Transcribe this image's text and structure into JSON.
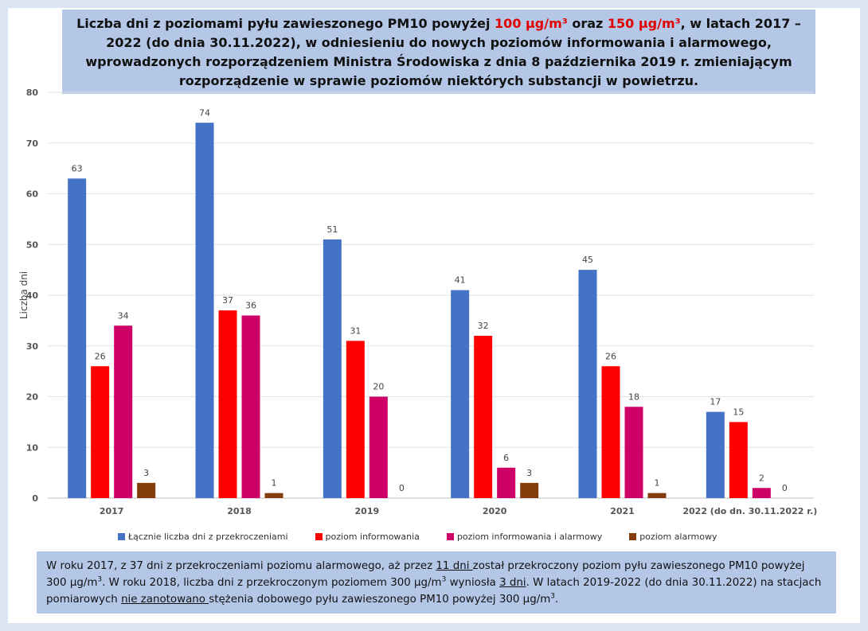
{
  "title": {
    "part1": "Liczba dni z poziomami pyłu zawieszonego PM10 powyżej ",
    "threshold1": "100 µg/m³",
    "part2": " oraz ",
    "threshold2": "150 µg/m³",
    "part3": ", w latach 2017 – 2022 (do dnia 30.11.2022), w odniesieniu do nowych poziomów informowania i alarmowego, wprowadzonych rozporządzeniem Ministra Środowiska z dnia 8 października 2019 r. zmieniającym rozporządzenie w sprawie poziomów niektórych substancji w powietrzu."
  },
  "chart_data": {
    "type": "bar",
    "categories": [
      "2017",
      "2018",
      "2019",
      "2020",
      "2021",
      "2022 (do dn. 30.11.2022 r.)"
    ],
    "series": [
      {
        "name": "Łącznie liczba dni z przekroczeniami",
        "color": "#4472c4",
        "values": [
          63,
          74,
          51,
          41,
          45,
          17
        ]
      },
      {
        "name": "poziom informowania",
        "color": "#ff0000",
        "values": [
          26,
          37,
          31,
          32,
          26,
          15
        ]
      },
      {
        "name": "poziom informowania i alarmowy",
        "color": "#cc0066",
        "values": [
          34,
          36,
          20,
          6,
          18,
          2
        ]
      },
      {
        "name": "poziom alarmowy",
        "color": "#843c0c",
        "values": [
          3,
          1,
          0,
          3,
          1,
          0
        ]
      }
    ],
    "xlabel": "",
    "ylabel": "Liczba dni",
    "ylim": [
      0,
      80
    ],
    "yticks": [
      0,
      10,
      20,
      30,
      40,
      50,
      60,
      70,
      80
    ],
    "grid": true,
    "legend": "bottom"
  },
  "note": {
    "t1": "W roku 2017, z 37 dni z przekroczeniami poziomu alarmowego, aż przez ",
    "u1": "11 dni ",
    "t2": "został przekroczony poziom pyłu zawieszonego PM10 powyżej 300 µg/m",
    "sup": "3",
    "t3": ". W roku 2018, liczba dni z przekroczonym poziomem 300 µg/m",
    "t4": " wyniosła ",
    "u2": "3 dni",
    "t5": ". W latach 2019-2022 (do dnia 30.11.2022) na stacjach pomiarowych ",
    "u3": "nie zanotowano ",
    "t6": "stężenia dobowego pyłu zawieszonego PM10 powyżej 300 µg/m",
    "t7": "."
  }
}
